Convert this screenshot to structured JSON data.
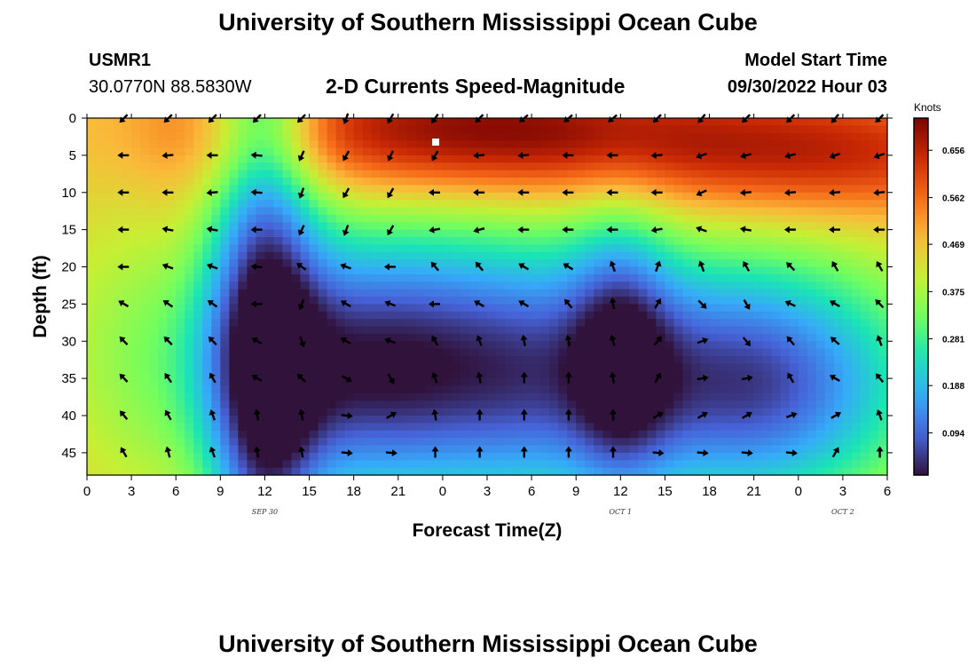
{
  "header": {
    "title": "University of Southern Mississippi Ocean Cube",
    "station": "USMR1",
    "coords": "30.0770N  88.5830W",
    "subtitle": "2-D Currents Speed-Magnitude",
    "model_label": "Model Start Time",
    "model_time": "09/30/2022 Hour 03",
    "bottom_title": "University of Southern Mississippi Ocean Cube"
  },
  "colors": {
    "arrow": "#000000",
    "marker": "#ffffff",
    "colormap": [
      "#30123b",
      "#4662d7",
      "#36aaf9",
      "#1ae4b6",
      "#72fe5e",
      "#c7ef34",
      "#faba39",
      "#f66b19",
      "#cb2a04",
      "#7a0403"
    ]
  },
  "chart_data": {
    "type": "heatmap",
    "title": "2-D Currents Speed-Magnitude",
    "xlabel": "Forecast Time(Z)",
    "ylabel": "Depth (ft)",
    "x_tick_labels": [
      "0",
      "3",
      "6",
      "9",
      "12",
      "15",
      "18",
      "21",
      "0",
      "3",
      "6",
      "9",
      "12",
      "15",
      "18",
      "21",
      "0",
      "3",
      "6"
    ],
    "x_hours": [
      0,
      3,
      6,
      9,
      12,
      15,
      18,
      21,
      24,
      27,
      30,
      33,
      36,
      39,
      42,
      45,
      48,
      51,
      54
    ],
    "date_labels": [
      {
        "label": "SEP 30",
        "hour": 12
      },
      {
        "label": "OCT 1",
        "hour": 36
      },
      {
        "label": "OCT 2",
        "hour": 51
      }
    ],
    "y_ticks": [
      0,
      5,
      10,
      15,
      20,
      25,
      30,
      35,
      40,
      45
    ],
    "ylim": [
      0,
      48
    ],
    "xlim": [
      0,
      54
    ],
    "colorbar": {
      "label": "Knots",
      "ticks": [
        "0.656",
        "0.562",
        "0.469",
        "0.375",
        "0.281",
        "0.188",
        "0.094"
      ],
      "tick_values": [
        0.656,
        0.562,
        0.469,
        0.375,
        0.281,
        0.188,
        0.094
      ],
      "range": [
        0.01,
        0.72
      ]
    },
    "arrow_times": [
      2.5,
      5.5,
      8.5,
      11.5,
      14.5,
      17.5,
      20.5,
      23.5,
      26.5,
      29.5,
      32.5,
      35.5,
      38.5,
      41.5,
      44.5,
      47.5,
      50.5,
      53.5
    ],
    "arrow_depths": [
      0,
      5,
      10,
      15,
      20,
      25,
      30,
      35,
      40,
      45
    ],
    "arrow_dirs": [
      [
        225,
        225,
        225,
        225,
        225,
        200,
        210,
        215,
        225,
        230,
        230,
        230,
        225,
        220,
        225,
        225,
        220,
        225
      ],
      [
        270,
        265,
        270,
        275,
        205,
        210,
        205,
        210,
        265,
        265,
        270,
        270,
        265,
        250,
        255,
        255,
        250,
        250
      ],
      [
        270,
        270,
        265,
        275,
        200,
        210,
        210,
        270,
        270,
        270,
        270,
        270,
        270,
        245,
        265,
        265,
        265,
        265
      ],
      [
        270,
        280,
        280,
        270,
        205,
        200,
        210,
        260,
        255,
        270,
        270,
        270,
        260,
        290,
        280,
        270,
        270,
        270
      ],
      [
        270,
        290,
        290,
        275,
        305,
        290,
        270,
        320,
        320,
        300,
        300,
        340,
        20,
        340,
        330,
        315,
        330,
        330
      ],
      [
        300,
        305,
        305,
        270,
        200,
        300,
        290,
        270,
        300,
        300,
        320,
        350,
        30,
        135,
        150,
        295,
        300,
        315
      ],
      [
        315,
        315,
        315,
        300,
        160,
        300,
        290,
        330,
        340,
        350,
        350,
        345,
        40,
        70,
        140,
        320,
        310,
        340
      ],
      [
        315,
        325,
        330,
        300,
        315,
        120,
        150,
        340,
        350,
        360,
        360,
        350,
        30,
        80,
        80,
        330,
        300,
        320
      ],
      [
        320,
        330,
        340,
        350,
        350,
        95,
        60,
        350,
        360,
        360,
        360,
        360,
        60,
        60,
        60,
        70,
        60,
        340
      ],
      [
        330,
        345,
        340,
        350,
        350,
        95,
        95,
        360,
        360,
        360,
        360,
        360,
        95,
        95,
        95,
        95,
        30,
        360
      ]
    ],
    "speed_field": {
      "background": 0.46,
      "blobs": [
        {
          "t": 6,
          "d": 17,
          "st": 1.8,
          "sd": 60,
          "v": 0.02
        },
        {
          "t": 12,
          "d": 24,
          "st": 2.5,
          "sd": 60,
          "v": -0.26
        },
        {
          "t": 20,
          "d": 35,
          "st": 10,
          "sd": 13,
          "v": -0.4
        },
        {
          "t": 30,
          "d": 38,
          "st": 3.5,
          "sd": 14,
          "v": -0.06
        },
        {
          "t": 36,
          "d": 32,
          "st": 2.5,
          "sd": 14,
          "v": -0.2
        },
        {
          "t": 45,
          "d": 36,
          "st": 8,
          "sd": 12,
          "v": -0.38
        },
        {
          "t": 26,
          "d": 2,
          "st": 12,
          "sd": 6,
          "v": 0.26
        },
        {
          "t": 50,
          "d": 5,
          "st": 10,
          "sd": 6,
          "v": 0.18
        },
        {
          "t": 22,
          "d": 25,
          "st": 15,
          "sd": 12,
          "v": -0.08
        }
      ]
    }
  }
}
